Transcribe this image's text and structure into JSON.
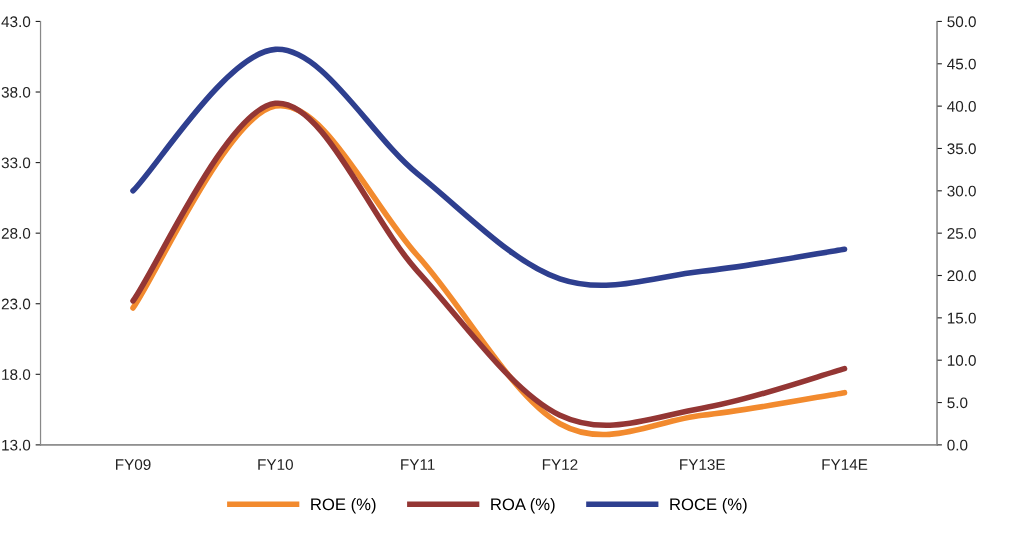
{
  "chart_data": {
    "type": "line",
    "categories": [
      "FY09",
      "FY10",
      "FY11",
      "FY12",
      "FY13E",
      "FY14E"
    ],
    "series": [
      {
        "name": "ROE (%)",
        "color": "#f28a2e",
        "values": [
          22.7,
          37.0,
          26.4,
          14.5,
          15.1,
          16.7
        ]
      },
      {
        "name": "ROA (%)",
        "color": "#943634",
        "values": [
          23.2,
          37.2,
          25.3,
          15.1,
          15.6,
          18.4
        ]
      },
      {
        "name": "ROCE (%)",
        "color": "#2e3f8f",
        "values": [
          30.0,
          46.7,
          32.0,
          19.6,
          20.5,
          23.1
        ],
        "axis": "y2"
      }
    ],
    "ylim": [
      13,
      43
    ],
    "yticks": [
      {
        "value": 13,
        "label": "13.0"
      },
      {
        "value": 18,
        "label": "18.0"
      },
      {
        "value": 23,
        "label": "23.0"
      },
      {
        "value": 28,
        "label": "28.0"
      },
      {
        "value": 33,
        "label": "33.0"
      },
      {
        "value": 38,
        "label": "38.0"
      },
      {
        "value": 43,
        "label": "43.0"
      }
    ],
    "y2lim": [
      0,
      50
    ],
    "y2ticks": [
      {
        "value": 0,
        "label": "0.0"
      },
      {
        "value": 5,
        "label": "5.0"
      },
      {
        "value": 10,
        "label": "10.0"
      },
      {
        "value": 15,
        "label": "15.0"
      },
      {
        "value": 20,
        "label": "20.0"
      },
      {
        "value": 25,
        "label": "25.0"
      },
      {
        "value": 30,
        "label": "30.0"
      },
      {
        "value": 35,
        "label": "35.0"
      },
      {
        "value": 40,
        "label": "40.0"
      },
      {
        "value": 45,
        "label": "45.0"
      },
      {
        "value": 50,
        "label": "50.0"
      }
    ],
    "legend": "bottom",
    "grid": false,
    "marker": "none",
    "line_style": "solid"
  }
}
